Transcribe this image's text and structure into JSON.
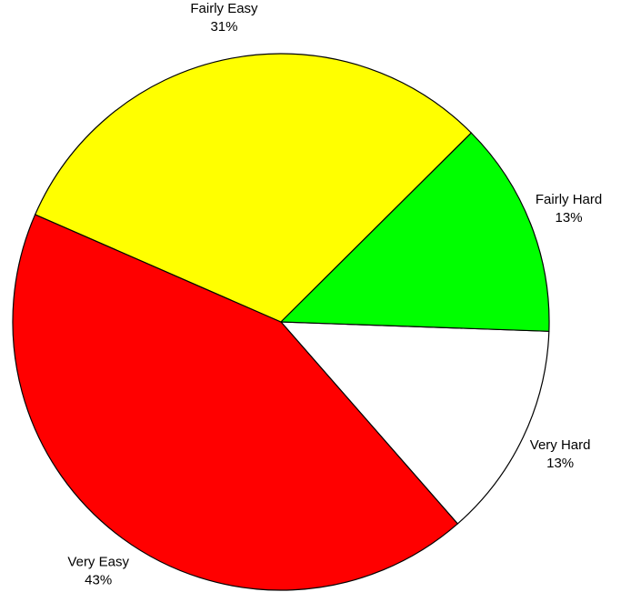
{
  "chart_data": {
    "type": "pie",
    "categories": [
      "Very Hard",
      "Very Easy",
      "Fairly Easy",
      "Fairly Hard"
    ],
    "values": [
      13,
      43,
      31,
      13
    ],
    "value_labels": [
      "13%",
      "43%",
      "31%",
      "13%"
    ],
    "colors": [
      "#ffffff",
      "#ff0000",
      "#ffff00",
      "#00ff00"
    ]
  }
}
